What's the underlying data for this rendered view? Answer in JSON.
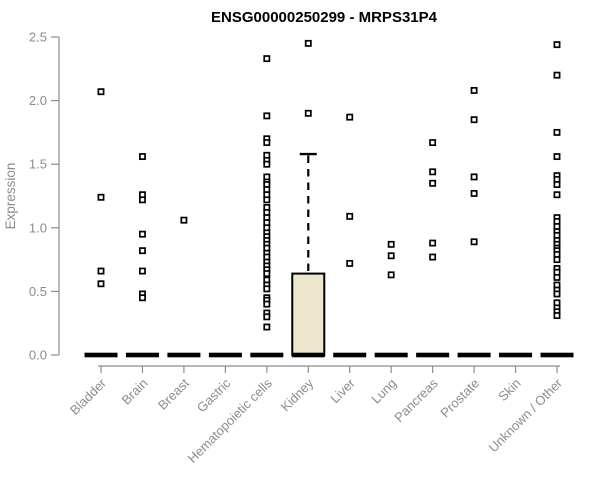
{
  "chart_data": {
    "type": "scatter",
    "subtype": "strip-plot-with-boxplot",
    "title": "ENSG00000250299 - MRPS31P4",
    "ylabel": "Expression",
    "xlabel": "",
    "ylim": [
      0.0,
      2.5
    ],
    "yticks": [
      0.0,
      0.5,
      1.0,
      1.5,
      2.0,
      2.5
    ],
    "grid": false,
    "legend": null,
    "point_marker": "open-square",
    "categories": [
      "Bladder",
      "Brain",
      "Breast",
      "Gastric",
      "Hematopoietic cells",
      "Kidney",
      "Liver",
      "Lung",
      "Pancreas",
      "Prostate",
      "Skin",
      "Unknown / Other"
    ],
    "series": [
      {
        "name": "Bladder",
        "values": [
          2.07,
          1.24,
          0.66,
          0.56
        ]
      },
      {
        "name": "Brain",
        "values": [
          1.56,
          1.26,
          1.22,
          0.95,
          0.82,
          0.66,
          0.48,
          0.45
        ]
      },
      {
        "name": "Breast",
        "values": [
          1.06
        ]
      },
      {
        "name": "Gastric",
        "values": []
      },
      {
        "name": "Hematopoietic cells",
        "values": [
          2.33,
          1.88,
          1.7,
          1.67,
          1.57,
          1.53,
          1.5,
          1.4,
          1.36,
          1.34,
          1.3,
          1.26,
          1.22,
          1.16,
          1.12,
          1.08,
          1.04,
          1.0,
          0.96,
          0.93,
          0.9,
          0.87,
          0.84,
          0.8,
          0.77,
          0.73,
          0.7,
          0.67,
          0.64,
          0.59,
          0.55,
          0.52,
          0.45,
          0.43,
          0.4,
          0.33,
          0.3,
          0.22
        ]
      },
      {
        "name": "Kidney",
        "values": [
          2.45,
          1.9
        ]
      },
      {
        "name": "Liver",
        "values": [
          1.87,
          1.09,
          0.72
        ]
      },
      {
        "name": "Lung",
        "values": [
          0.87,
          0.78,
          0.63
        ]
      },
      {
        "name": "Pancreas",
        "values": [
          1.67,
          1.44,
          1.35,
          0.88,
          0.77
        ]
      },
      {
        "name": "Prostate",
        "values": [
          2.08,
          1.85,
          1.4,
          1.27,
          0.89
        ]
      },
      {
        "name": "Skin",
        "values": []
      },
      {
        "name": "Unknown / Other",
        "values": [
          2.44,
          2.2,
          1.75,
          1.56,
          1.41,
          1.38,
          1.34,
          1.26,
          1.08,
          1.05,
          1.01,
          0.97,
          0.94,
          0.9,
          0.87,
          0.84,
          0.82,
          0.79,
          0.75,
          0.68,
          0.65,
          0.61,
          0.55,
          0.51,
          0.48,
          0.41,
          0.37,
          0.34,
          0.31
        ]
      }
    ],
    "medians": [
      0,
      0,
      0,
      0,
      0,
      0,
      0,
      0,
      0,
      0,
      0,
      0
    ],
    "boxplot": {
      "category": "Kidney",
      "q1": 0.0,
      "median": 0.0,
      "q3": 0.64,
      "whisker_low": 0.0,
      "whisker_high": 1.58,
      "outliers_shown_as_points": true
    },
    "colors": {
      "point": "#000000",
      "axis": "#8C8C8C",
      "tick_label": "#8C8C8C",
      "title": "#000000",
      "median_bar": "#000000",
      "box_fill": "#EDE8CD",
      "box_border": "#000000"
    }
  }
}
